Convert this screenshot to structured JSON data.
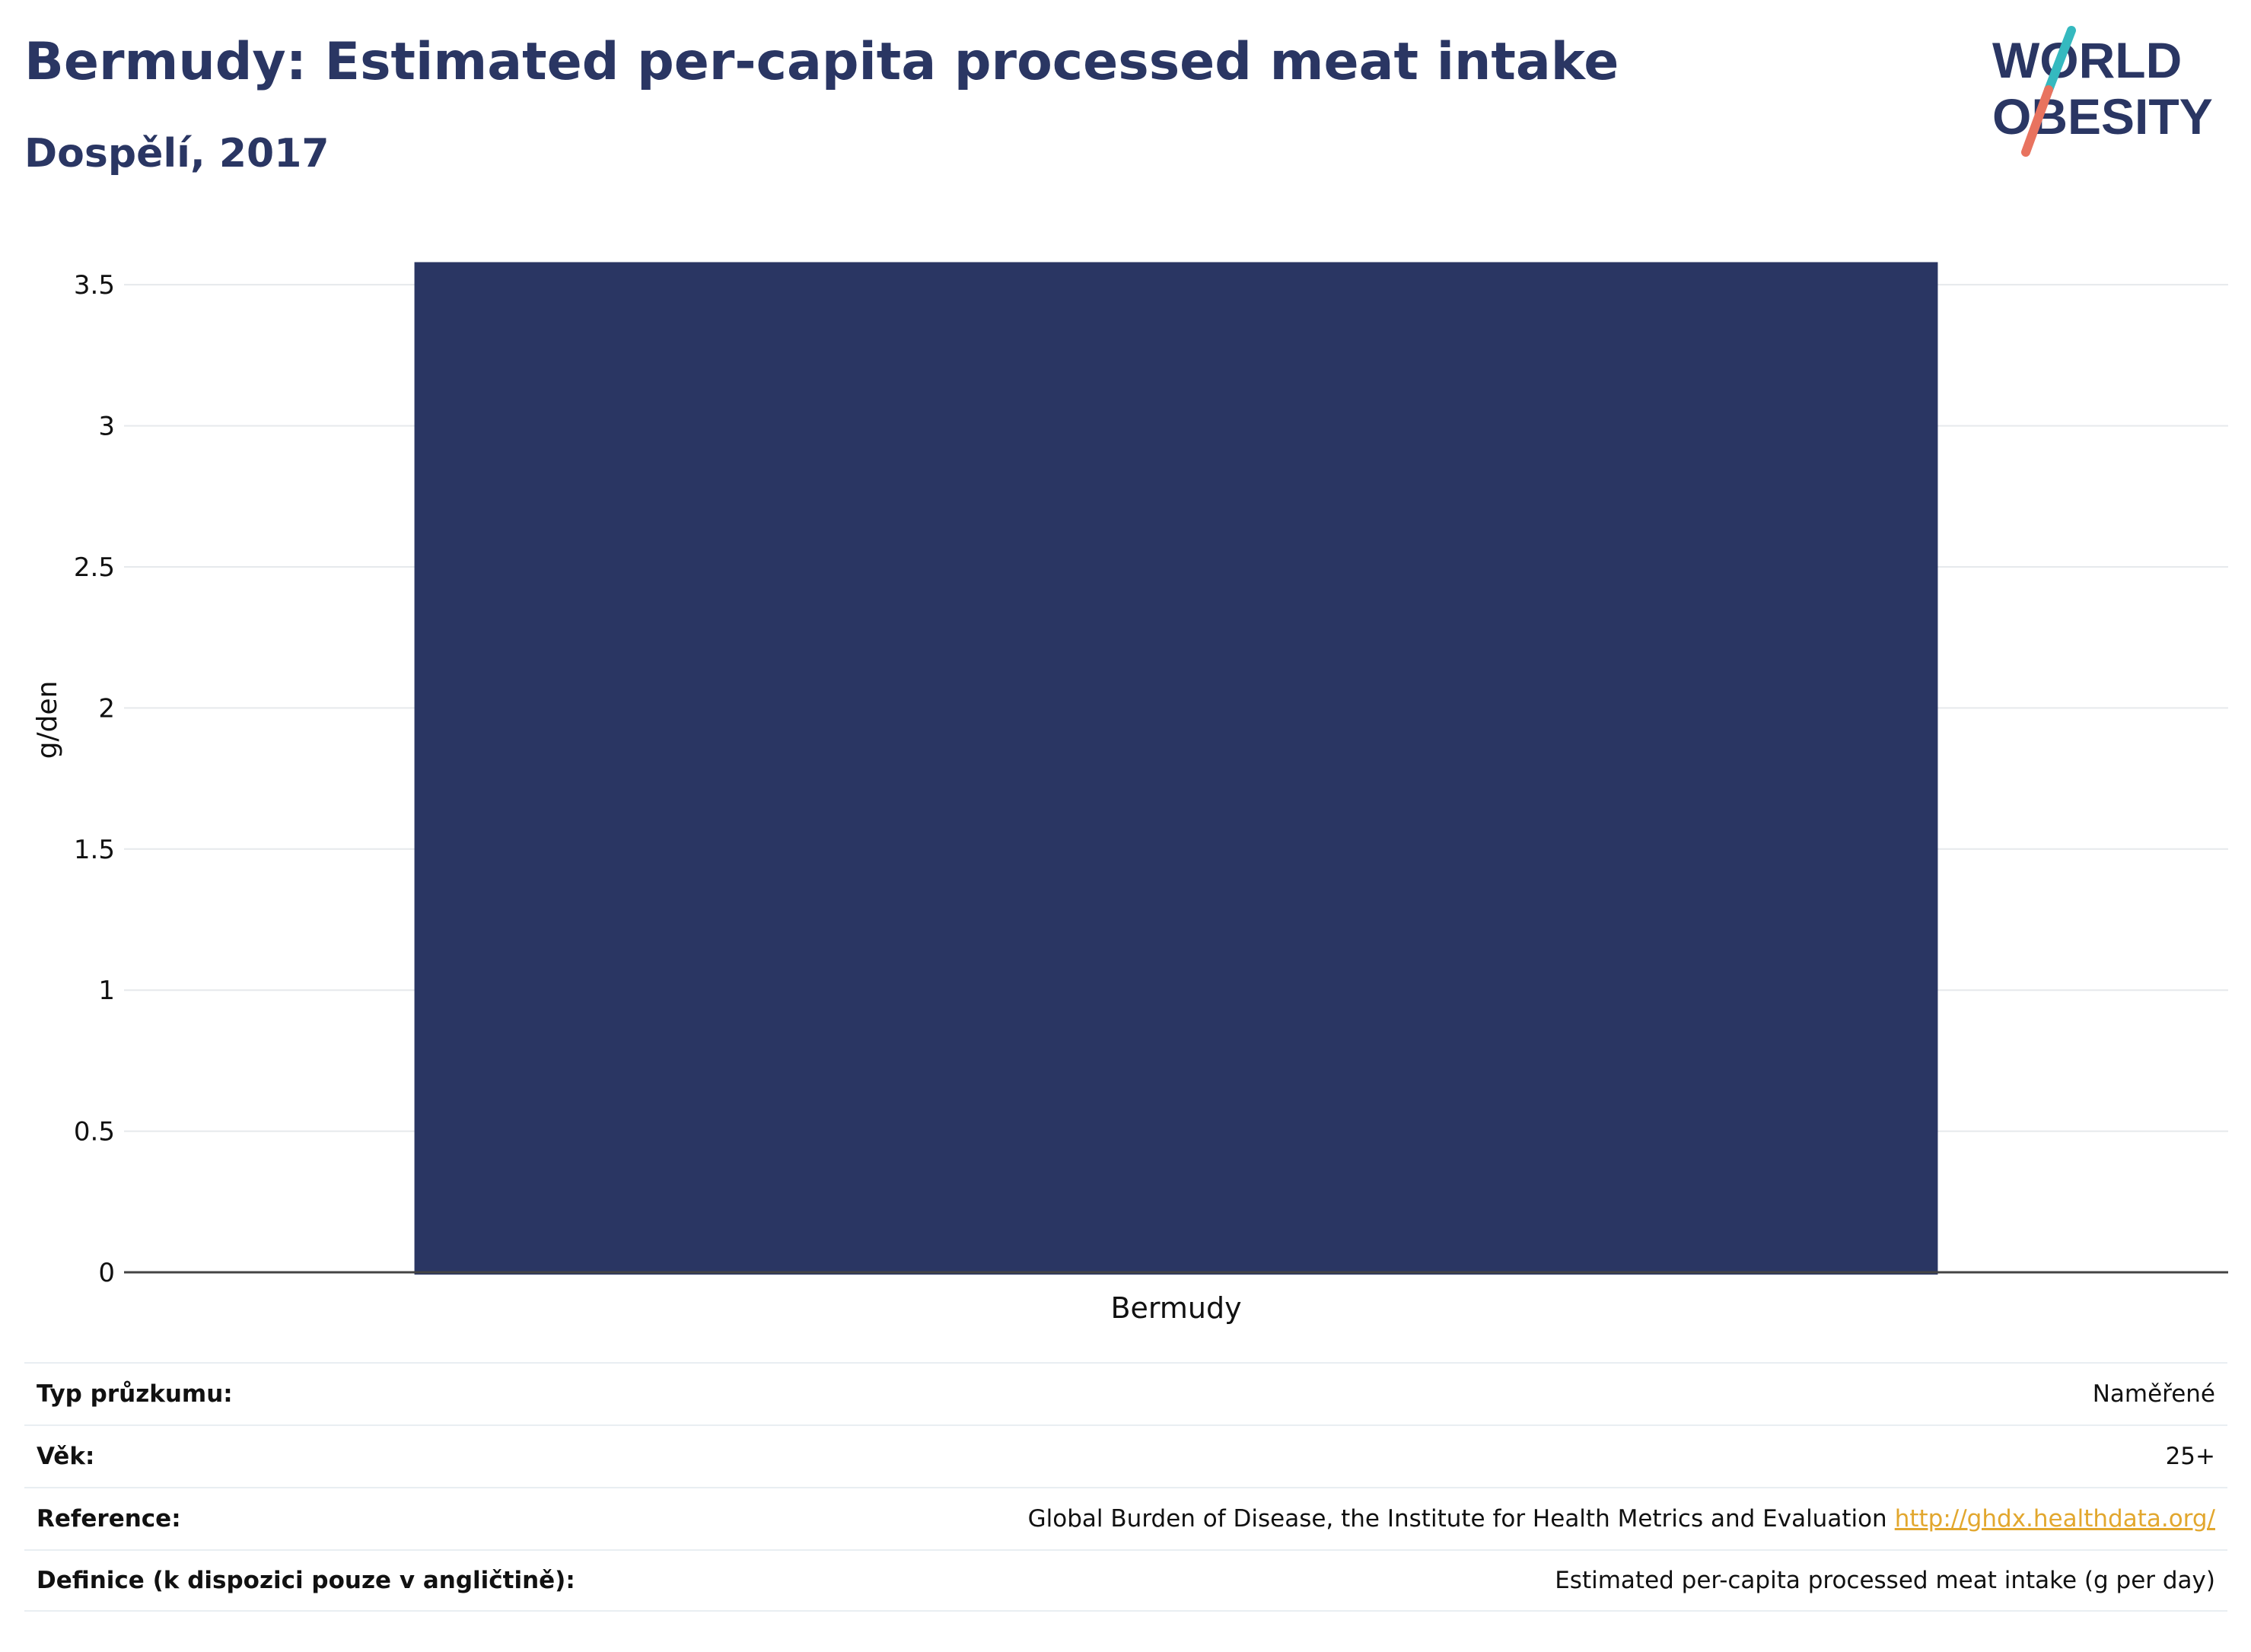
{
  "header": {
    "title": "Bermudy: Estimated per-capita processed meat intake",
    "subtitle": "Dospělí, 2017"
  },
  "logo": {
    "line1": "WORLD",
    "line2": "OBESITY",
    "colors": {
      "text": "#2a3663",
      "slash_top": "#35b9bf",
      "slash_bottom": "#e8735f"
    }
  },
  "chart_data": {
    "type": "bar",
    "categories": [
      "Bermudy"
    ],
    "values": [
      3.58
    ],
    "title": "",
    "xlabel": "",
    "ylabel": "g/den",
    "ylim": [
      0,
      3.7
    ],
    "yticks": [
      0,
      0.5,
      1,
      1.5,
      2,
      2.5,
      3,
      3.5
    ],
    "ytick_labels": [
      "0",
      "0.5",
      "1",
      "1.5",
      "2",
      "2.5",
      "3",
      "3.5"
    ],
    "grid": true,
    "bar_color": "#2a3663"
  },
  "meta": {
    "rows": [
      {
        "label": "Typ průzkumu:",
        "value": "Naměřené"
      },
      {
        "label": "Věk:",
        "value": "25+"
      },
      {
        "label": "Reference:",
        "value": "Global Burden of Disease, the Institute for Health Metrics and Evaluation",
        "link": "http://ghdx.healthdata.org/"
      },
      {
        "label": "Definice (k dispozici pouze v angličtině):",
        "value": "Estimated per-capita processed meat intake (g per day)"
      }
    ]
  }
}
